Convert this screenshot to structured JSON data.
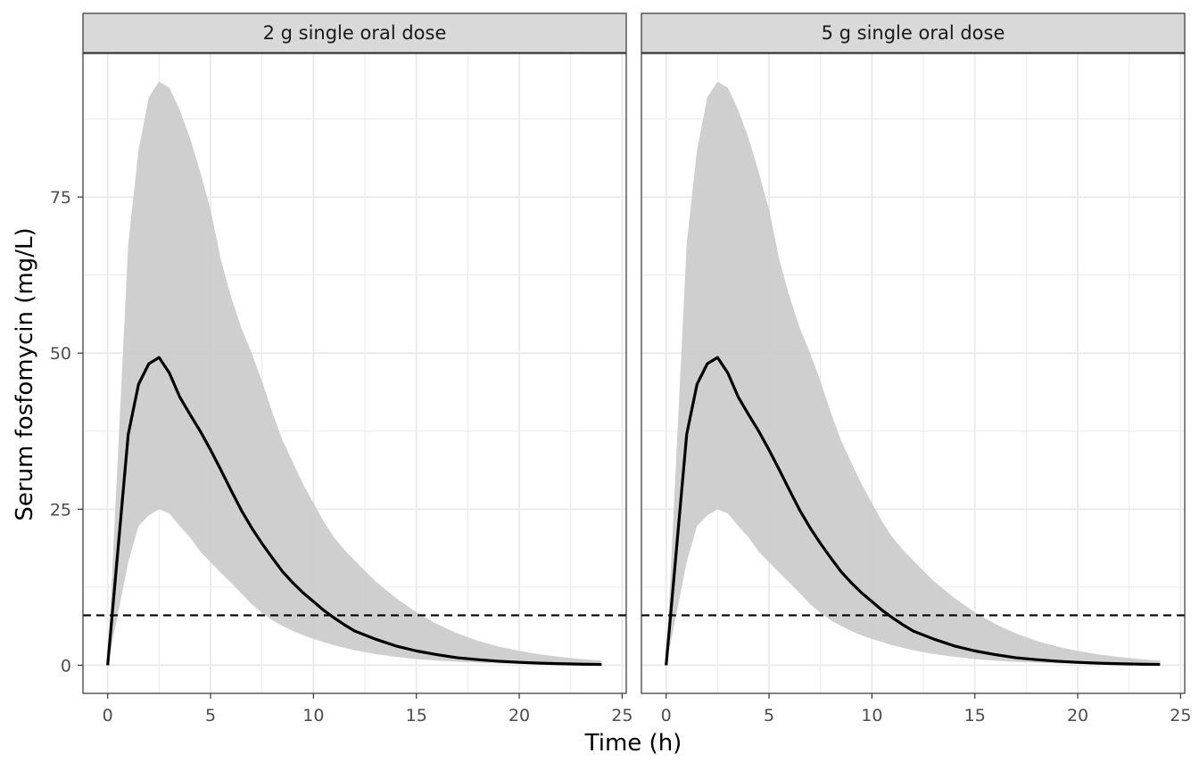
{
  "chart_data": {
    "type": "line",
    "xlabel": "Time (h)",
    "ylabel": "Serum fosfomycin (mg/L)",
    "xlim": [
      -1.2,
      25.2
    ],
    "ylim": [
      -4.5,
      98
    ],
    "x_ticks": [
      0,
      5,
      10,
      15,
      20,
      25
    ],
    "y_ticks": [
      0,
      25,
      50,
      75
    ],
    "grid": true,
    "reference_line": {
      "y": 8,
      "style": "dashed"
    },
    "colors": {
      "line": "#000000",
      "ribbon": "#cccccc",
      "grid": "#ebebeb",
      "strip": "#d9d9d9"
    },
    "panels": [
      {
        "title": "2 g single oral dose",
        "series": [
          {
            "x": [
              0,
              1,
              1.5,
              2,
              2.5,
              3,
              3.5,
              4,
              4.5,
              5,
              5.5,
              6,
              6.5,
              7,
              7.5,
              8,
              8.5,
              9,
              9.5,
              10,
              10.5,
              11,
              11.5,
              12,
              13,
              14,
              15,
              16,
              17,
              18,
              19,
              20,
              21,
              22,
              23,
              24
            ],
            "median": [
              0,
              37,
              45,
              48.3,
              49.3,
              46.8,
              43,
              40.2,
              37.5,
              34.5,
              31.3,
              28,
              24.8,
              22,
              19.5,
              17.2,
              15,
              13.2,
              11.6,
              10.2,
              8.8,
              7.6,
              6.5,
              5.5,
              4.2,
              3.1,
              2.3,
              1.7,
              1.2,
              0.9,
              0.65,
              0.47,
              0.34,
              0.25,
              0.18,
              0.13
            ],
            "lower": [
              0,
              16.5,
              22.3,
              24,
              25,
              24.3,
              22.3,
              20.5,
              18.2,
              16.5,
              14.8,
              13.2,
              11.5,
              9.8,
              8.4,
              7.2,
              6.3,
              5.5,
              4.8,
              4.2,
              3.7,
              3.2,
              2.8,
              2.4,
              1.8,
              1.35,
              1.0,
              0.75,
              0.55,
              0.4,
              0.3,
              0.22,
              0.16,
              0.12,
              0.09,
              0.06
            ],
            "upper": [
              0,
              67.5,
              82.5,
              91,
              93.5,
              92.5,
              89,
              84.5,
              79,
              73,
              65,
              59,
              54,
              50,
              45.5,
              40.5,
              36,
              32.5,
              29,
              26,
              23,
              20.5,
              18.5,
              16.8,
              13.5,
              10.8,
              8.5,
              6.6,
              5.1,
              3.9,
              3.0,
              2.3,
              1.75,
              1.33,
              1.0,
              0.75
            ]
          }
        ]
      },
      {
        "title": "5 g single oral dose",
        "series": [
          {
            "x": [
              0,
              1,
              1.5,
              2,
              2.5,
              3,
              3.5,
              4,
              4.5,
              5,
              5.5,
              6,
              6.5,
              7,
              7.5,
              8,
              8.5,
              9,
              9.5,
              10,
              10.5,
              11,
              11.5,
              12,
              13,
              14,
              15,
              16,
              17,
              18,
              19,
              20,
              21,
              22,
              23,
              24
            ],
            "median": [
              0,
              37,
              45,
              48.3,
              49.3,
              46.8,
              43,
              40.2,
              37.5,
              34.5,
              31.3,
              28,
              24.8,
              22,
              19.5,
              17.2,
              15,
              13.2,
              11.6,
              10.2,
              8.8,
              7.6,
              6.5,
              5.5,
              4.2,
              3.1,
              2.3,
              1.7,
              1.2,
              0.9,
              0.65,
              0.47,
              0.34,
              0.25,
              0.18,
              0.13
            ],
            "lower": [
              0,
              16.5,
              22.3,
              24,
              25,
              24.3,
              22.3,
              20.5,
              18.2,
              16.5,
              14.8,
              13.2,
              11.5,
              9.8,
              8.4,
              7.2,
              6.3,
              5.5,
              4.8,
              4.2,
              3.7,
              3.2,
              2.8,
              2.4,
              1.8,
              1.35,
              1.0,
              0.75,
              0.55,
              0.4,
              0.3,
              0.22,
              0.16,
              0.12,
              0.09,
              0.06
            ],
            "upper": [
              0,
              67.5,
              82.5,
              91,
              93.5,
              92.5,
              89,
              84.5,
              79,
              73,
              65,
              59,
              54,
              50,
              45.5,
              40.5,
              36,
              32.5,
              29,
              26,
              23,
              20.5,
              18.5,
              16.8,
              13.5,
              10.8,
              8.5,
              6.6,
              5.1,
              3.9,
              3.0,
              2.3,
              1.75,
              1.33,
              1.0,
              0.75
            ]
          }
        ]
      }
    ]
  }
}
